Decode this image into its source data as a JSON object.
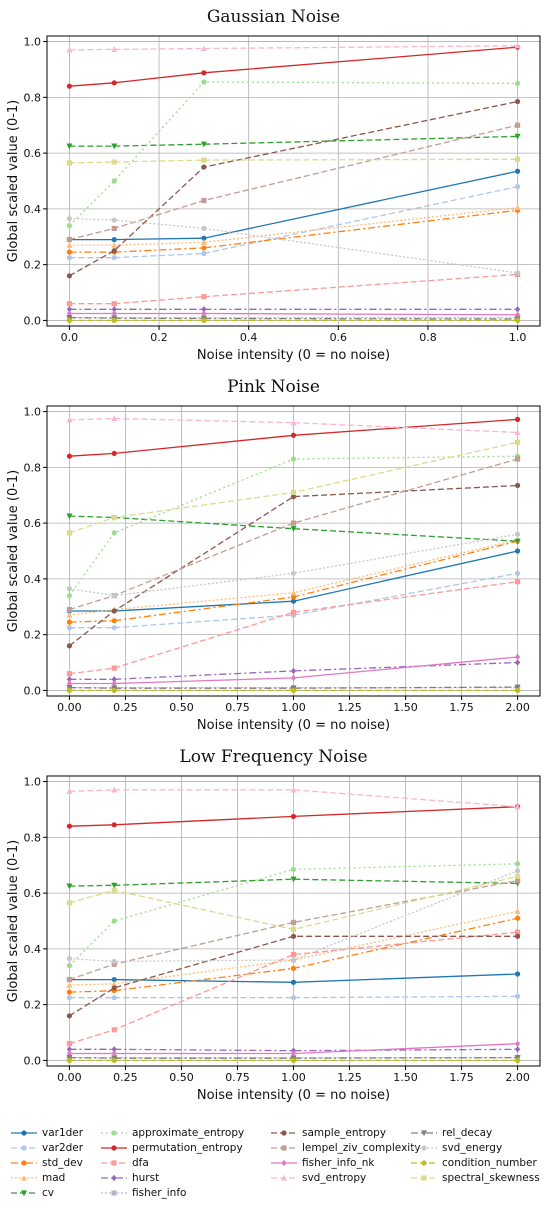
{
  "styles": {
    "var1der": {
      "color": "#1f77b4",
      "dash": "",
      "marker": "circle"
    },
    "var2der": {
      "color": "#aec7e8",
      "dash": "6,3",
      "marker": "circle"
    },
    "std_dev": {
      "color": "#ff7f0e",
      "dash": "7,3,2,3",
      "marker": "circle"
    },
    "mad": {
      "color": "#ffbb78",
      "dash": "2,2",
      "marker": "triangle"
    },
    "cv": {
      "color": "#2ca02c",
      "dash": "6,3",
      "marker": "triangle-down"
    },
    "approximate_entropy": {
      "color": "#98df8a",
      "dash": "2,3",
      "marker": "circle"
    },
    "permutation_entropy": {
      "color": "#d62728",
      "dash": "",
      "marker": "circle"
    },
    "dfa": {
      "color": "#ff9896",
      "dash": "6,3",
      "marker": "square"
    },
    "hurst": {
      "color": "#9467bd",
      "dash": "7,3,2,3",
      "marker": "diamond"
    },
    "fisher_info": {
      "color": "#c5b0d5",
      "dash": "2,2",
      "marker": "square"
    },
    "sample_entropy": {
      "color": "#8c564b",
      "dash": "6,3",
      "marker": "circle"
    },
    "lempel_ziv_complexity": {
      "color": "#c49c94",
      "dash": "6,3",
      "marker": "square"
    },
    "fisher_info_nk": {
      "color": "#e377c2",
      "dash": "",
      "marker": "diamond"
    },
    "svd_entropy": {
      "color": "#f7b6d2",
      "dash": "6,3",
      "marker": "triangle"
    },
    "rel_decay": {
      "color": "#7f7f7f",
      "dash": "7,3,2,3",
      "marker": "triangle-down"
    },
    "svd_energy": {
      "color": "#c7c7c7",
      "dash": "2,2",
      "marker": "circle"
    },
    "condition_number": {
      "color": "#bcbd22",
      "dash": "6,3",
      "marker": "circle"
    },
    "spectral_skewness": {
      "color": "#dbdb8d",
      "dash": "6,3",
      "marker": "square"
    }
  },
  "legend": {
    "columns": [
      [
        "var1der",
        "var2der",
        "std_dev",
        "mad",
        "cv"
      ],
      [
        "approximate_entropy",
        "permutation_entropy",
        "dfa",
        "hurst",
        "fisher_info"
      ],
      [
        "sample_entropy",
        "lempel_ziv_complexity",
        "fisher_info_nk",
        "svd_entropy"
      ],
      [
        "rel_decay",
        "svd_energy",
        "condition_number",
        "spectral_skewness"
      ]
    ]
  },
  "chart_data": [
    {
      "type": "line",
      "title": "Gaussian Noise",
      "xlabel": "Noise intensity (0 = no noise)",
      "ylabel": "Global scaled value (0-1)",
      "xlim": [
        -0.05,
        1.05
      ],
      "ylim": [
        -0.02,
        1.02
      ],
      "xticks": [
        0.0,
        0.2,
        0.4,
        0.6,
        0.8,
        1.0
      ],
      "xtick_labels": [
        "0.0",
        "0.2",
        "0.4",
        "0.6",
        "0.8",
        "1.0"
      ],
      "yticks": [
        0.0,
        0.2,
        0.4,
        0.6,
        0.8,
        1.0
      ],
      "ytick_labels": [
        "0.0",
        "0.2",
        "0.4",
        "0.6",
        "0.8",
        "1.0"
      ],
      "grid": true,
      "x": [
        0.0,
        0.1,
        0.3,
        1.0
      ],
      "series": [
        {
          "name": "var1der",
          "values": [
            0.29,
            0.29,
            0.295,
            0.535
          ]
        },
        {
          "name": "var2der",
          "values": [
            0.225,
            0.225,
            0.24,
            0.48
          ]
        },
        {
          "name": "std_dev",
          "values": [
            0.245,
            0.245,
            0.26,
            0.395
          ]
        },
        {
          "name": "mad",
          "values": [
            0.27,
            0.27,
            0.28,
            0.405
          ]
        },
        {
          "name": "cv",
          "values": [
            0.625,
            0.625,
            0.632,
            0.66
          ]
        },
        {
          "name": "approximate_entropy",
          "values": [
            0.34,
            0.5,
            0.855,
            0.85
          ]
        },
        {
          "name": "permutation_entropy",
          "values": [
            0.84,
            0.852,
            0.888,
            0.98
          ]
        },
        {
          "name": "dfa",
          "values": [
            0.06,
            0.06,
            0.085,
            0.165
          ]
        },
        {
          "name": "hurst",
          "values": [
            0.04,
            0.04,
            0.04,
            0.04
          ]
        },
        {
          "name": "fisher_info",
          "values": [
            0.01,
            0.01,
            0.01,
            0.01
          ]
        },
        {
          "name": "sample_entropy",
          "values": [
            0.16,
            0.25,
            0.55,
            0.785
          ]
        },
        {
          "name": "lempel_ziv_complexity",
          "values": [
            0.29,
            0.33,
            0.43,
            0.7
          ]
        },
        {
          "name": "fisher_info_nk",
          "values": [
            0.025,
            0.025,
            0.025,
            0.02
          ]
        },
        {
          "name": "svd_entropy",
          "values": [
            0.97,
            0.972,
            0.975,
            0.985
          ]
        },
        {
          "name": "rel_decay",
          "values": [
            0.01,
            0.008,
            0.007,
            0.005
          ]
        },
        {
          "name": "svd_energy",
          "values": [
            0.365,
            0.36,
            0.33,
            0.17
          ]
        },
        {
          "name": "condition_number",
          "values": [
            0.0,
            0.0,
            0.0,
            0.0
          ]
        },
        {
          "name": "spectral_skewness",
          "values": [
            0.565,
            0.568,
            0.575,
            0.578
          ]
        }
      ]
    },
    {
      "type": "line",
      "title": "Pink Noise",
      "xlabel": "Noise intensity (0 = no noise)",
      "ylabel": "Global scaled value (0-1)",
      "xlim": [
        -0.1,
        2.1
      ],
      "ylim": [
        -0.02,
        1.02
      ],
      "xticks": [
        0.0,
        0.25,
        0.5,
        0.75,
        1.0,
        1.25,
        1.5,
        1.75,
        2.0
      ],
      "xtick_labels": [
        "0.00",
        "0.25",
        "0.50",
        "0.75",
        "1.00",
        "1.25",
        "1.50",
        "1.75",
        "2.00"
      ],
      "yticks": [
        0.0,
        0.2,
        0.4,
        0.6,
        0.8,
        1.0
      ],
      "ytick_labels": [
        "0.0",
        "0.2",
        "0.4",
        "0.6",
        "0.8",
        "1.0"
      ],
      "grid": true,
      "x": [
        0.0,
        0.2,
        1.0,
        2.0
      ],
      "series": [
        {
          "name": "var1der",
          "values": [
            0.285,
            0.285,
            0.32,
            0.5
          ]
        },
        {
          "name": "var2der",
          "values": [
            0.225,
            0.225,
            0.27,
            0.42
          ]
        },
        {
          "name": "std_dev",
          "values": [
            0.245,
            0.25,
            0.335,
            0.535
          ]
        },
        {
          "name": "mad",
          "values": [
            0.27,
            0.29,
            0.35,
            0.54
          ]
        },
        {
          "name": "cv",
          "values": [
            0.625,
            0.62,
            0.58,
            0.535
          ]
        },
        {
          "name": "approximate_entropy",
          "values": [
            0.34,
            0.565,
            0.83,
            0.84
          ]
        },
        {
          "name": "permutation_entropy",
          "values": [
            0.84,
            0.85,
            0.915,
            0.972
          ]
        },
        {
          "name": "dfa",
          "values": [
            0.06,
            0.08,
            0.28,
            0.39
          ]
        },
        {
          "name": "hurst",
          "values": [
            0.04,
            0.04,
            0.07,
            0.1
          ]
        },
        {
          "name": "fisher_info",
          "values": [
            0.01,
            0.01,
            0.01,
            0.01
          ]
        },
        {
          "name": "sample_entropy",
          "values": [
            0.16,
            0.285,
            0.695,
            0.735
          ]
        },
        {
          "name": "lempel_ziv_complexity",
          "values": [
            0.29,
            0.34,
            0.6,
            0.83
          ]
        },
        {
          "name": "fisher_info_nk",
          "values": [
            0.025,
            0.025,
            0.045,
            0.12
          ]
        },
        {
          "name": "svd_entropy",
          "values": [
            0.97,
            0.975,
            0.96,
            0.925
          ]
        },
        {
          "name": "rel_decay",
          "values": [
            0.01,
            0.008,
            0.008,
            0.012
          ]
        },
        {
          "name": "svd_energy",
          "values": [
            0.365,
            0.34,
            0.42,
            0.56
          ]
        },
        {
          "name": "condition_number",
          "values": [
            0.0,
            0.0,
            0.0,
            0.0
          ]
        },
        {
          "name": "spectral_skewness",
          "values": [
            0.565,
            0.62,
            0.71,
            0.89
          ]
        }
      ]
    },
    {
      "type": "line",
      "title": "Low Frequency Noise",
      "xlabel": "Noise intensity (0 = no noise)",
      "ylabel": "Global scaled value (0-1)",
      "xlim": [
        -0.1,
        2.1
      ],
      "ylim": [
        -0.02,
        1.02
      ],
      "xticks": [
        0.0,
        0.25,
        0.5,
        0.75,
        1.0,
        1.25,
        1.5,
        1.75,
        2.0
      ],
      "xtick_labels": [
        "0.00",
        "0.25",
        "0.50",
        "0.75",
        "1.00",
        "1.25",
        "1.50",
        "1.75",
        "2.00"
      ],
      "yticks": [
        0.0,
        0.2,
        0.4,
        0.6,
        0.8,
        1.0
      ],
      "ytick_labels": [
        "0.0",
        "0.2",
        "0.4",
        "0.6",
        "0.8",
        "1.0"
      ],
      "grid": true,
      "x": [
        0.0,
        0.2,
        1.0,
        2.0
      ],
      "series": [
        {
          "name": "var1der",
          "values": [
            0.29,
            0.29,
            0.28,
            0.31
          ]
        },
        {
          "name": "var2der",
          "values": [
            0.225,
            0.225,
            0.225,
            0.23
          ]
        },
        {
          "name": "std_dev",
          "values": [
            0.245,
            0.25,
            0.33,
            0.51
          ]
        },
        {
          "name": "mad",
          "values": [
            0.27,
            0.275,
            0.36,
            0.535
          ]
        },
        {
          "name": "cv",
          "values": [
            0.625,
            0.628,
            0.65,
            0.635
          ]
        },
        {
          "name": "approximate_entropy",
          "values": [
            0.34,
            0.5,
            0.685,
            0.705
          ]
        },
        {
          "name": "permutation_entropy",
          "values": [
            0.84,
            0.845,
            0.875,
            0.91
          ]
        },
        {
          "name": "dfa",
          "values": [
            0.06,
            0.11,
            0.38,
            0.46
          ]
        },
        {
          "name": "hurst",
          "values": [
            0.04,
            0.04,
            0.035,
            0.04
          ]
        },
        {
          "name": "fisher_info",
          "values": [
            0.01,
            0.01,
            0.01,
            0.01
          ]
        },
        {
          "name": "sample_entropy",
          "values": [
            0.16,
            0.26,
            0.445,
            0.445
          ]
        },
        {
          "name": "lempel_ziv_complexity",
          "values": [
            0.29,
            0.345,
            0.495,
            0.645
          ]
        },
        {
          "name": "fisher_info_nk",
          "values": [
            0.025,
            0.025,
            0.025,
            0.06
          ]
        },
        {
          "name": "svd_entropy",
          "values": [
            0.965,
            0.97,
            0.97,
            0.91
          ]
        },
        {
          "name": "rel_decay",
          "values": [
            0.01,
            0.008,
            0.008,
            0.01
          ]
        },
        {
          "name": "svd_energy",
          "values": [
            0.365,
            0.355,
            0.36,
            0.68
          ]
        },
        {
          "name": "condition_number",
          "values": [
            0.0,
            0.0,
            0.0,
            0.0
          ]
        },
        {
          "name": "spectral_skewness",
          "values": [
            0.565,
            0.61,
            0.47,
            0.66
          ]
        }
      ]
    }
  ]
}
